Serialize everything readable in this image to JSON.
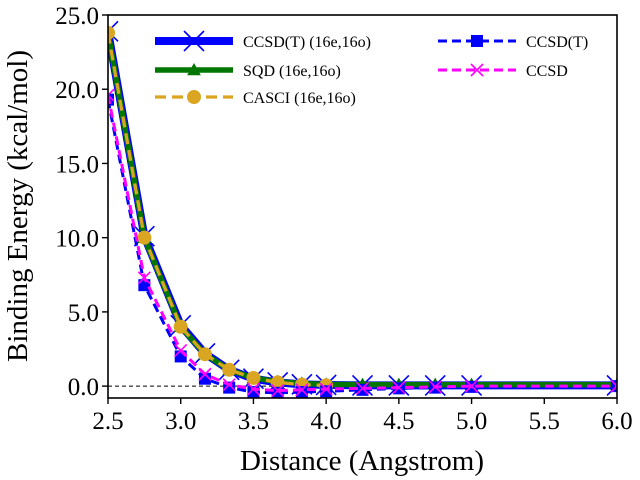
{
  "chart_data": {
    "type": "line",
    "title": "",
    "xlabel": "Distance (Angstrom)",
    "ylabel": "Binding Energy (kcal/mol)",
    "xlim": [
      2.5,
      6.0
    ],
    "ylim": [
      -0.8,
      25.0
    ],
    "xticks": [
      "2.5",
      "3.0",
      "3.5",
      "4.0",
      "4.5",
      "5.0",
      "5.5",
      "6.0"
    ],
    "yticks": [
      "0.0",
      "5.0",
      "10.0",
      "15.0",
      "20.0",
      "25.0"
    ],
    "zero_reference_line": true,
    "grid": false,
    "legend_position": "top",
    "series": [
      {
        "name": "CCSD(T) (16e,16o)",
        "color": "#0000ff",
        "line_style": "solid-thick",
        "marker": "x",
        "x": [
          2.5,
          2.75,
          3.0,
          3.1667,
          3.3333,
          3.5,
          3.6667,
          3.8333,
          4.0,
          4.25,
          4.5,
          4.75,
          5.0,
          6.0
        ],
        "y": [
          23.9,
          10.1,
          4.1,
          2.2,
          1.1,
          0.5,
          0.25,
          0.12,
          0.08,
          0.05,
          0.05,
          0.05,
          0.05,
          0.05
        ]
      },
      {
        "name": "SQD (16e,16o)",
        "color": "#007700",
        "line_style": "solid",
        "marker": "triangle",
        "x": [
          2.5,
          2.75,
          3.0,
          3.1667,
          3.3333,
          3.5,
          3.6667,
          3.8333,
          4.0,
          4.25,
          4.5,
          4.75,
          5.0,
          6.0
        ],
        "y": [
          23.8,
          10.0,
          4.0,
          2.15,
          1.1,
          0.55,
          0.3,
          0.18,
          0.12,
          0.1,
          0.1,
          0.1,
          0.1,
          0.1
        ]
      },
      {
        "name": "CASCI (16e,16o)",
        "color": "#daa520",
        "line_style": "dashed",
        "marker": "circle",
        "x": [
          2.5,
          2.75,
          3.0,
          3.1667,
          3.3333,
          3.5,
          3.6667,
          3.8333,
          4.0
        ],
        "y": [
          23.8,
          10.0,
          4.0,
          2.15,
          1.1,
          0.55,
          0.25,
          0.1,
          0.05
        ]
      },
      {
        "name": "CCSD(T)",
        "color": "#0000ff",
        "line_style": "dashed",
        "marker": "square",
        "x": [
          2.5,
          2.75,
          3.0,
          3.1667,
          3.3333,
          3.5,
          3.6667,
          3.8333,
          4.0,
          4.25,
          4.5,
          4.75,
          5.0,
          6.0
        ],
        "y": [
          19.3,
          6.8,
          2.0,
          0.5,
          -0.1,
          -0.4,
          -0.45,
          -0.4,
          -0.35,
          -0.25,
          -0.15,
          -0.1,
          -0.05,
          0.0
        ]
      },
      {
        "name": "CCSD",
        "color": "#ff00ff",
        "line_style": "dashed",
        "marker": "x",
        "x": [
          2.5,
          2.75,
          3.0,
          3.1667,
          3.3333,
          3.5,
          3.6667,
          3.8333,
          4.0,
          4.25,
          4.5,
          4.75,
          5.0,
          6.0
        ],
        "y": [
          19.6,
          7.3,
          2.4,
          0.8,
          0.1,
          -0.2,
          -0.3,
          -0.25,
          -0.2,
          -0.15,
          -0.1,
          -0.05,
          0.0,
          0.0
        ]
      }
    ]
  }
}
